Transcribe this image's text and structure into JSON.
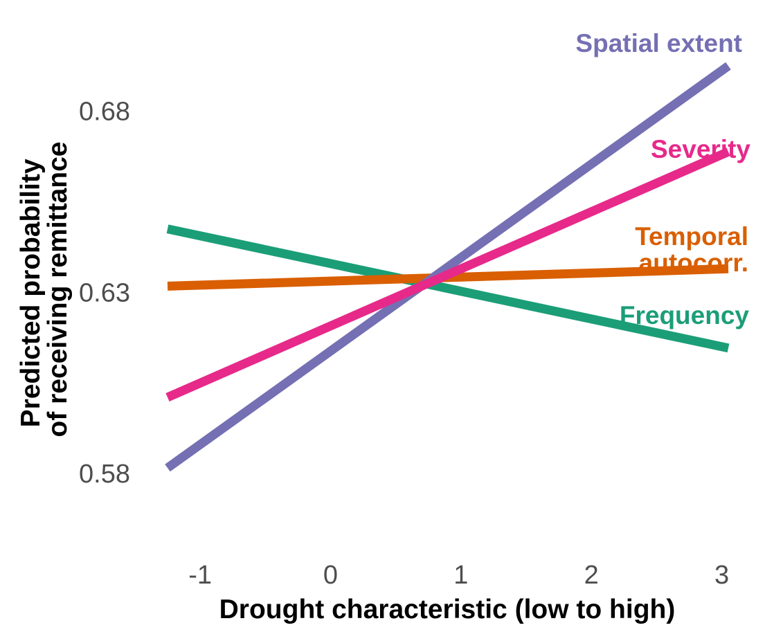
{
  "chart_data": {
    "type": "line",
    "xlabel": "Drought characteristic (low to high)",
    "ylabel_lines": [
      "Predicted probability",
      "of receiving remittance"
    ],
    "xlim": [
      -1.25,
      3.05
    ],
    "ylim": [
      0.5645,
      0.6935
    ],
    "x_ticks": [
      {
        "value": -1,
        "label": "-1"
      },
      {
        "value": 0,
        "label": "0"
      },
      {
        "value": 1,
        "label": "1"
      },
      {
        "value": 2,
        "label": "2"
      },
      {
        "value": 3,
        "label": "3"
      }
    ],
    "y_ticks": [
      {
        "value": 0.58,
        "label": "0.58"
      },
      {
        "value": 0.63,
        "label": "0.63"
      },
      {
        "value": 0.68,
        "label": "0.68"
      }
    ],
    "grid": false,
    "legend": "direct labels at right end of lines",
    "series": [
      {
        "name": "Frequency",
        "color": "#1b9e77",
        "x": [
          -1.25,
          3.05
        ],
        "y": [
          0.6475,
          0.6146
        ],
        "label_lines": [
          "Frequency"
        ]
      },
      {
        "name": "Temporal autocorr.",
        "color": "#d95f02",
        "x": [
          -1.25,
          3.05
        ],
        "y": [
          0.6317,
          0.6365
        ],
        "label_lines": [
          "Temporal",
          "autocorr."
        ]
      },
      {
        "name": "Spatial extent",
        "color": "#7570b3",
        "x": [
          -1.25,
          3.05
        ],
        "y": [
          0.5815,
          0.6925
        ],
        "label_lines": [
          "Spatial extent"
        ]
      },
      {
        "name": "Severity",
        "color": "#e7298a",
        "x": [
          -1.25,
          3.05
        ],
        "y": [
          0.601,
          0.6688
        ],
        "label_lines": [
          "Severity"
        ]
      }
    ]
  }
}
